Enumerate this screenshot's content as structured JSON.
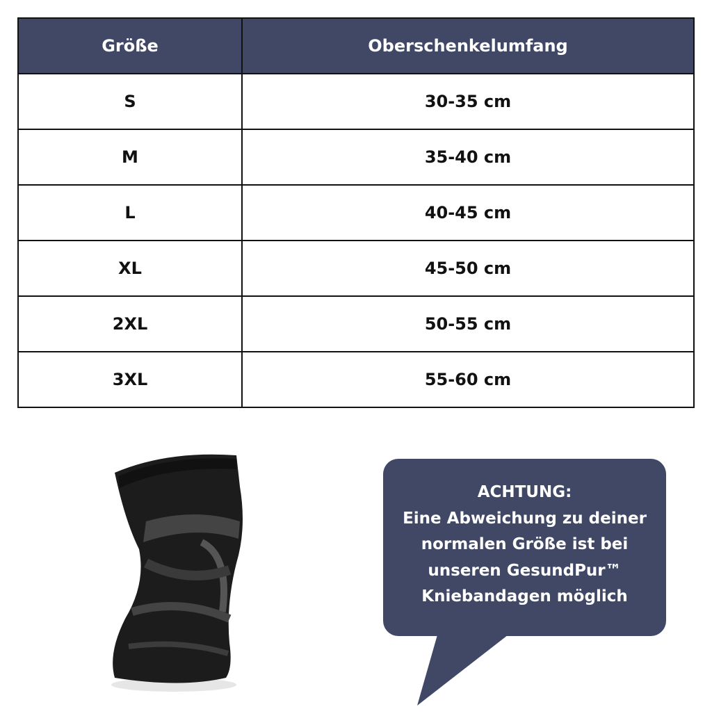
{
  "table": {
    "headers": [
      "Größe",
      "Oberschenkelumfang"
    ],
    "rows": [
      [
        "S",
        "30-35 cm"
      ],
      [
        "M",
        "35-40 cm"
      ],
      [
        "L",
        "40-45 cm"
      ],
      [
        "XL",
        "45-50 cm"
      ],
      [
        "2XL",
        "50-55 cm"
      ],
      [
        "3XL",
        "55-60 cm"
      ]
    ]
  },
  "notice": {
    "lines": [
      "ACHTUNG:",
      "Eine Abweichung zu deiner",
      "normalen Größe ist bei",
      "unseren GesundPur™",
      "Kniebandagen möglich"
    ]
  },
  "colors": {
    "header_bg": "#404866",
    "bubble_bg": "#404866"
  }
}
